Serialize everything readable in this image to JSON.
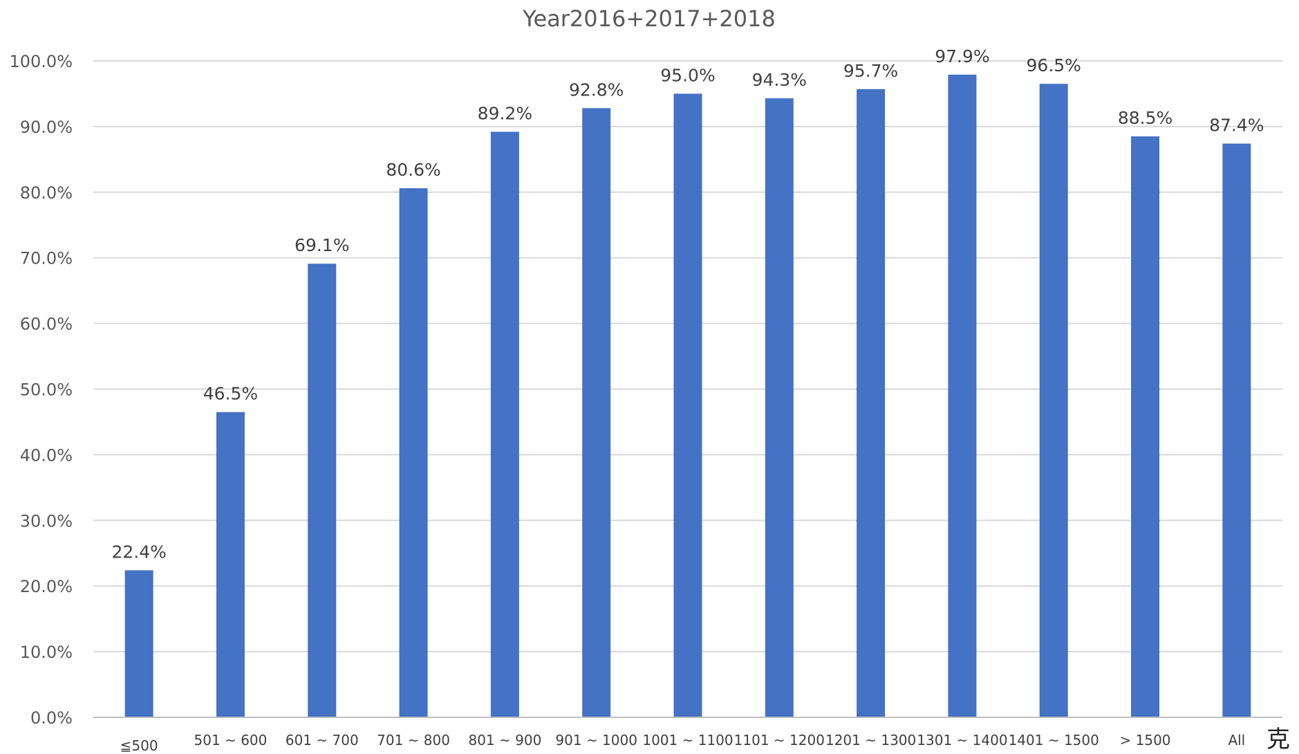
{
  "chart_data": {
    "type": "bar",
    "title": "Year2016+2017+2018",
    "xlabel": "",
    "ylabel": "",
    "unit_label": "克",
    "categories": [
      "≦500",
      "501 ~ 600",
      "601 ~ 700",
      "701 ~ 800",
      "801 ~ 900",
      "901 ~ 1000",
      "1001 ~ 1100",
      "1101 ~ 1200",
      "1201 ~ 1300",
      "1301 ~ 1400",
      "1401 ~ 1500",
      "> 1500",
      "All"
    ],
    "values": [
      22.4,
      46.5,
      69.1,
      80.6,
      89.2,
      92.8,
      95.0,
      94.3,
      95.7,
      97.9,
      96.5,
      88.5,
      87.4
    ],
    "data_labels": [
      "22.4%",
      "46.5%",
      "69.1%",
      "80.6%",
      "89.2%",
      "92.8%",
      "95.0%",
      "94.3%",
      "95.7%",
      "97.9%",
      "96.5%",
      "88.5%",
      "87.4%"
    ],
    "yticks": [
      "0.0%",
      "10.0%",
      "20.0%",
      "30.0%",
      "40.0%",
      "50.0%",
      "60.0%",
      "70.0%",
      "80.0%",
      "90.0%",
      "100.0%"
    ],
    "ylim": [
      0,
      100
    ],
    "grid": true,
    "legend": "none",
    "bar_color": "#4472C4"
  }
}
